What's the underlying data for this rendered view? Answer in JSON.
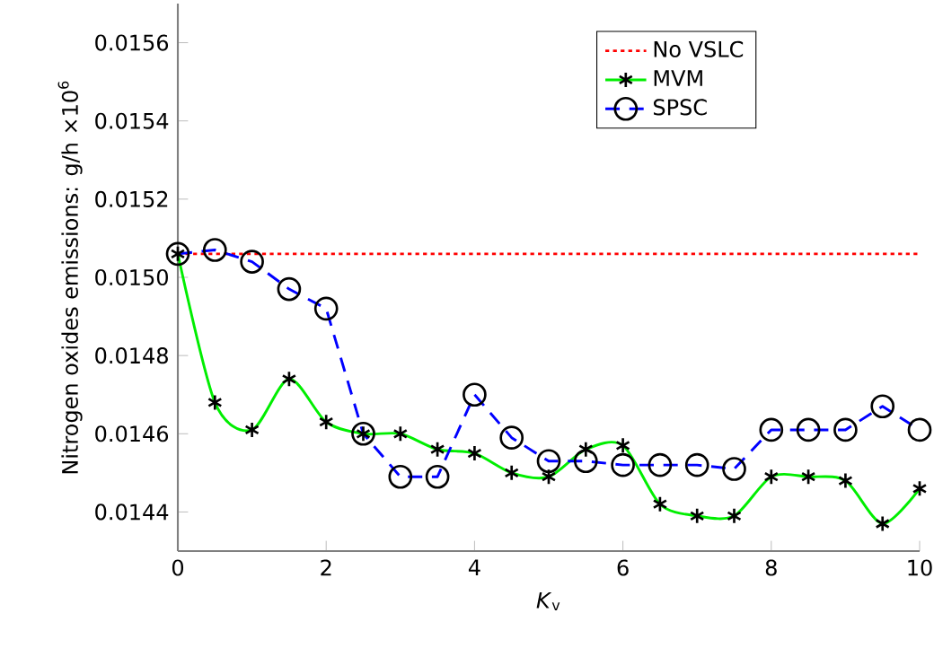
{
  "chart_data": {
    "type": "line",
    "xlabel": "*K*$_{v}$",
    "ylabel": "Nitrogen oxides emissions: g/h ×10$^{6}$",
    "x": [
      0,
      0.5,
      1,
      1.5,
      2,
      2.5,
      3,
      3.5,
      4,
      4.5,
      5,
      5.5,
      6,
      6.5,
      7,
      7.5,
      8,
      8.5,
      9,
      9.5,
      10
    ],
    "series": [
      {
        "name": "No VSLC",
        "color": "#ff0000",
        "line_style": "dotted",
        "x": [
          0,
          10
        ],
        "values": [
          0.01506,
          0.01506
        ]
      },
      {
        "name": "MVM",
        "color": "#00ee00",
        "line_style": "solid",
        "marker": "cross",
        "values": [
          0.01506,
          0.01468,
          0.01461,
          0.01474,
          0.01463,
          0.0146,
          0.0146,
          0.01456,
          0.01455,
          0.0145,
          0.01449,
          0.01456,
          0.01457,
          0.01442,
          0.01439,
          0.01439,
          0.01449,
          0.01449,
          0.01448,
          0.01437,
          0.01446
        ]
      },
      {
        "name": "SPSC",
        "color": "#0000ff",
        "line_style": "dashed",
        "marker": "circle",
        "values": [
          0.01506,
          0.01507,
          0.01504,
          0.01497,
          0.01492,
          0.0146,
          0.01449,
          0.01449,
          0.0147,
          0.01459,
          0.01453,
          0.01453,
          0.01452,
          0.01452,
          0.01452,
          0.01451,
          0.01461,
          0.01461,
          0.01461,
          0.01467,
          0.01461
        ]
      }
    ],
    "xlim": [
      0,
      10
    ],
    "xticks": [
      0,
      2,
      4,
      6,
      8,
      10
    ],
    "ylim": [
      0.0143,
      0.0157
    ],
    "yticks": [
      {
        "value": 0.0144,
        "label": "0.0144"
      },
      {
        "value": 0.0146,
        "label": "0.0146"
      },
      {
        "value": 0.0148,
        "label": "0.0148"
      },
      {
        "value": 0.015,
        "label": "0.0150"
      },
      {
        "value": 0.0152,
        "label": "0.0152"
      },
      {
        "value": 0.0154,
        "label": "0.0154"
      },
      {
        "value": 0.0156,
        "label": "0.0156"
      }
    ],
    "grid": false,
    "legend": "top right"
  }
}
